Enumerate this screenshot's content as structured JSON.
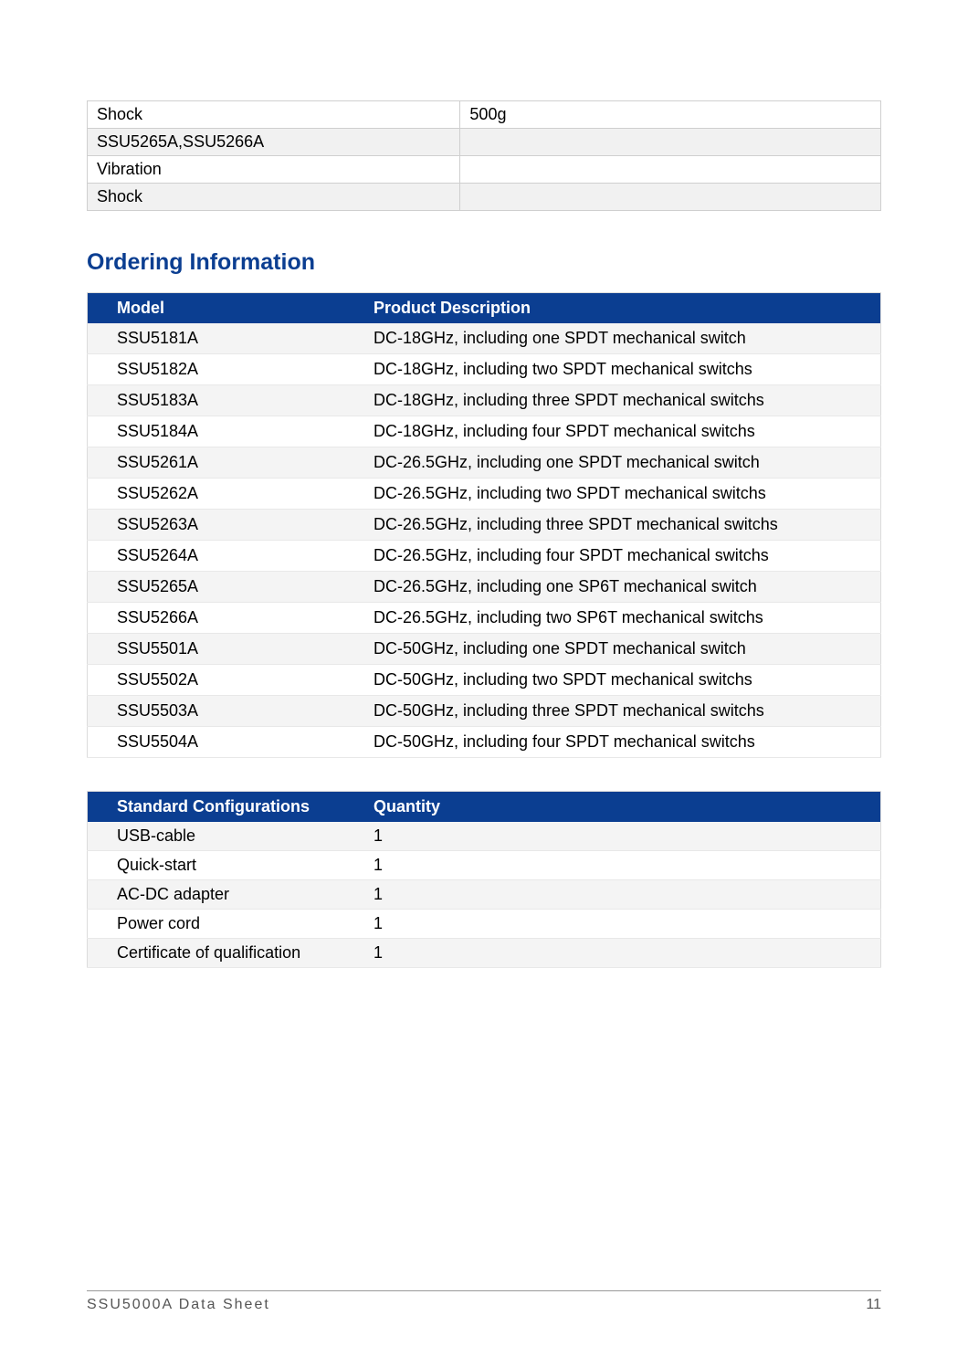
{
  "colors": {
    "heading": "#0b3e91",
    "table_header_bg": "#0b3e91",
    "table_header_fg": "#ffffff",
    "row_even_bg": "#f4f4f4",
    "row_odd_bg": "#ffffff",
    "border": "#dcdcdc",
    "footer_rule": "#999999",
    "footer_text": "#555555",
    "page_bg": "#ffffff",
    "text": "#000000"
  },
  "typography": {
    "body_fontsize_pt": 13,
    "heading_fontsize_pt": 19,
    "font_family": "Arial"
  },
  "specs_table": {
    "type": "table",
    "columns": [
      "parameter",
      "value"
    ],
    "column_widths_percent": [
      47,
      53
    ],
    "rows": [
      {
        "parameter": "Shock",
        "value": "500g",
        "shaded": false
      },
      {
        "parameter": "SSU5265A,SSU5266A",
        "value": "",
        "shaded": true
      },
      {
        "parameter": "Vibration",
        "value": "",
        "shaded": false
      },
      {
        "parameter": "Shock",
        "value": "",
        "shaded": true
      }
    ]
  },
  "section_heading": "Ordering Information",
  "ordering_table": {
    "type": "table",
    "columns": {
      "model": "Model",
      "desc": "Product Description"
    },
    "column_widths_percent": [
      34,
      66
    ],
    "rows": [
      {
        "model": "SSU5181A",
        "desc": "DC-18GHz, including one SPDT mechanical switch"
      },
      {
        "model": "SSU5182A",
        "desc": "DC-18GHz, including two SPDT mechanical switchs"
      },
      {
        "model": "SSU5183A",
        "desc": "DC-18GHz, including three SPDT mechanical switchs"
      },
      {
        "model": "SSU5184A",
        "desc": "DC-18GHz, including four SPDT mechanical switchs"
      },
      {
        "model": "SSU5261A",
        "desc": "DC-26.5GHz, including one SPDT mechanical switch"
      },
      {
        "model": "SSU5262A",
        "desc": "DC-26.5GHz, including two SPDT mechanical switchs"
      },
      {
        "model": "SSU5263A",
        "desc": "DC-26.5GHz, including three SPDT mechanical switchs"
      },
      {
        "model": "SSU5264A",
        "desc": "DC-26.5GHz, including four SPDT mechanical switchs"
      },
      {
        "model": "SSU5265A",
        "desc": "DC-26.5GHz, including one SP6T mechanical switch"
      },
      {
        "model": "SSU5266A",
        "desc": "DC-26.5GHz, including two SP6T mechanical switchs"
      },
      {
        "model": "SSU5501A",
        "desc": "DC-50GHz, including one SPDT mechanical switch"
      },
      {
        "model": "SSU5502A",
        "desc": "DC-50GHz, including two SPDT mechanical switchs"
      },
      {
        "model": "SSU5503A",
        "desc": "DC-50GHz, including three SPDT mechanical switchs"
      },
      {
        "model": "SSU5504A",
        "desc": "DC-50GHz, including four SPDT mechanical switchs"
      }
    ]
  },
  "config_table": {
    "type": "table",
    "columns": {
      "conf": "Standard Configurations",
      "qty": "Quantity"
    },
    "column_widths_percent": [
      34,
      66
    ],
    "rows": [
      {
        "conf": "USB-cable",
        "qty": "1"
      },
      {
        "conf": "Quick-start",
        "qty": "1"
      },
      {
        "conf": "AC-DC adapter",
        "qty": "1"
      },
      {
        "conf": "Power cord",
        "qty": "1"
      },
      {
        "conf": "Certificate of qualification",
        "qty": "1"
      }
    ]
  },
  "footer": {
    "title": "SSU5000A Data Sheet",
    "page_number": "11"
  }
}
